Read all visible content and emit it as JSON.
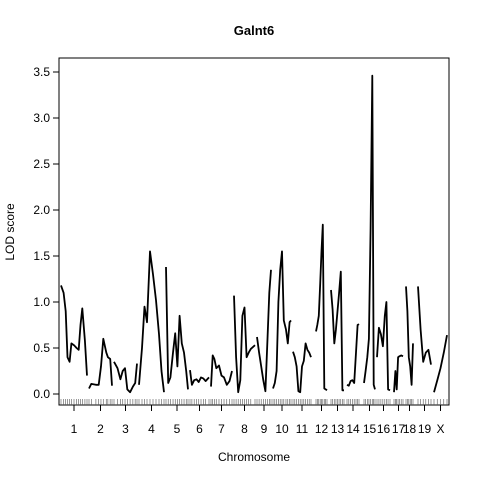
{
  "chart_data": {
    "type": "line",
    "title": "Galnt6",
    "xlabel": "Chromosome",
    "ylabel": "LOD score",
    "ylim": [
      0,
      3.5
    ],
    "y_ticks": [
      "0.0",
      "0.5",
      "1.0",
      "1.5",
      "2.0",
      "2.5",
      "3.0",
      "3.5"
    ],
    "grid": false,
    "chromosomes": [
      {
        "name": "1",
        "points": [
          [
            0,
            1.18
          ],
          [
            0.1,
            1.1
          ],
          [
            0.18,
            0.9
          ],
          [
            0.25,
            0.4
          ],
          [
            0.33,
            0.35
          ],
          [
            0.4,
            0.55
          ],
          [
            0.5,
            0.53
          ],
          [
            0.6,
            0.5
          ],
          [
            0.68,
            0.48
          ],
          [
            0.75,
            0.75
          ],
          [
            0.82,
            0.93
          ],
          [
            0.92,
            0.58
          ],
          [
            1,
            0.2
          ]
        ]
      },
      {
        "name": "2",
        "points": [
          [
            0,
            0.06
          ],
          [
            0.1,
            0.11
          ],
          [
            0.3,
            0.1
          ],
          [
            0.42,
            0.1
          ],
          [
            0.52,
            0.3
          ],
          [
            0.62,
            0.6
          ],
          [
            0.75,
            0.45
          ],
          [
            0.82,
            0.4
          ],
          [
            0.92,
            0.38
          ],
          [
            1,
            0.09
          ]
        ]
      },
      {
        "name": "3",
        "points": [
          [
            0,
            0.35
          ],
          [
            0.15,
            0.28
          ],
          [
            0.28,
            0.16
          ],
          [
            0.38,
            0.25
          ],
          [
            0.48,
            0.28
          ],
          [
            0.58,
            0.05
          ],
          [
            0.7,
            0.02
          ],
          [
            0.82,
            0.08
          ],
          [
            0.92,
            0.12
          ],
          [
            1,
            0.33
          ]
        ]
      },
      {
        "name": "4",
        "points": [
          [
            0,
            0.1
          ],
          [
            0.12,
            0.5
          ],
          [
            0.22,
            0.95
          ],
          [
            0.32,
            0.78
          ],
          [
            0.44,
            1.55
          ],
          [
            0.56,
            1.3
          ],
          [
            0.68,
            1.02
          ],
          [
            0.8,
            0.65
          ],
          [
            0.9,
            0.25
          ],
          [
            1,
            0.02
          ]
        ]
      },
      {
        "name": "5",
        "points": [
          [
            0,
            1.38
          ],
          [
            0.1,
            0.12
          ],
          [
            0.2,
            0.18
          ],
          [
            0.32,
            0.45
          ],
          [
            0.42,
            0.66
          ],
          [
            0.52,
            0.3
          ],
          [
            0.62,
            0.85
          ],
          [
            0.72,
            0.55
          ],
          [
            0.82,
            0.45
          ],
          [
            0.92,
            0.25
          ],
          [
            1,
            0.05
          ]
        ]
      },
      {
        "name": "6",
        "points": [
          [
            0,
            0.26
          ],
          [
            0.1,
            0.1
          ],
          [
            0.22,
            0.15
          ],
          [
            0.34,
            0.16
          ],
          [
            0.46,
            0.13
          ],
          [
            0.58,
            0.18
          ],
          [
            0.7,
            0.17
          ],
          [
            0.82,
            0.14
          ],
          [
            1,
            0.18
          ]
        ]
      },
      {
        "name": "7",
        "points": [
          [
            0,
            0.08
          ],
          [
            0.08,
            0.42
          ],
          [
            0.16,
            0.38
          ],
          [
            0.25,
            0.28
          ],
          [
            0.38,
            0.31
          ],
          [
            0.5,
            0.2
          ],
          [
            0.62,
            0.18
          ],
          [
            0.75,
            0.1
          ],
          [
            0.88,
            0.14
          ],
          [
            1,
            0.25
          ]
        ]
      },
      {
        "name": "8",
        "points": [
          [
            0,
            1.07
          ],
          [
            0.1,
            0.4
          ],
          [
            0.2,
            0.02
          ],
          [
            0.3,
            0.15
          ],
          [
            0.4,
            0.85
          ],
          [
            0.5,
            0.94
          ],
          [
            0.6,
            0.4
          ],
          [
            0.7,
            0.45
          ],
          [
            0.8,
            0.49
          ],
          [
            1,
            0.53
          ]
        ]
      },
      {
        "name": "9",
        "points": [
          [
            0,
            0.62
          ],
          [
            0.15,
            0.45
          ],
          [
            0.3,
            0.3
          ],
          [
            0.45,
            0.15
          ],
          [
            0.6,
            0.03
          ],
          [
            0.75,
            0.6
          ],
          [
            0.88,
            1.1
          ],
          [
            1,
            1.35
          ]
        ]
      },
      {
        "name": "10",
        "points": [
          [
            0,
            0.06
          ],
          [
            0.1,
            0.12
          ],
          [
            0.2,
            0.25
          ],
          [
            0.3,
            1.0
          ],
          [
            0.4,
            1.35
          ],
          [
            0.5,
            1.55
          ],
          [
            0.6,
            0.8
          ],
          [
            0.72,
            0.7
          ],
          [
            0.82,
            0.55
          ],
          [
            0.92,
            0.78
          ],
          [
            1,
            0.8
          ]
        ]
      },
      {
        "name": "11",
        "points": [
          [
            0,
            0.46
          ],
          [
            0.1,
            0.4
          ],
          [
            0.2,
            0.3
          ],
          [
            0.3,
            0.03
          ],
          [
            0.4,
            0.02
          ],
          [
            0.5,
            0.3
          ],
          [
            0.6,
            0.36
          ],
          [
            0.7,
            0.55
          ],
          [
            0.8,
            0.48
          ],
          [
            0.9,
            0.45
          ],
          [
            1,
            0.4
          ]
        ]
      },
      {
        "name": "12",
        "points": [
          [
            0,
            0.68
          ],
          [
            0.12,
            0.75
          ],
          [
            0.25,
            0.85
          ],
          [
            0.38,
            1.2
          ],
          [
            0.5,
            1.55
          ],
          [
            0.62,
            1.84
          ],
          [
            0.75,
            0.06
          ],
          [
            0.88,
            0.05
          ],
          [
            1,
            0.04
          ]
        ]
      },
      {
        "name": "13",
        "points": [
          [
            0,
            1.13
          ],
          [
            0.12,
            0.92
          ],
          [
            0.25,
            0.55
          ],
          [
            0.38,
            0.7
          ],
          [
            0.5,
            0.9
          ],
          [
            0.62,
            1.1
          ],
          [
            0.75,
            1.33
          ],
          [
            0.88,
            0.04
          ],
          [
            1,
            0.04
          ]
        ]
      },
      {
        "name": "14",
        "points": [
          [
            0,
            0.1
          ],
          [
            0.15,
            0.09
          ],
          [
            0.3,
            0.14
          ],
          [
            0.45,
            0.15
          ],
          [
            0.6,
            0.12
          ],
          [
            0.75,
            0.45
          ],
          [
            0.88,
            0.75
          ],
          [
            1,
            0.76
          ]
        ]
      },
      {
        "name": "15",
        "points": [
          [
            0,
            0.12
          ],
          [
            0.15,
            0.25
          ],
          [
            0.3,
            0.4
          ],
          [
            0.45,
            0.6
          ],
          [
            0.6,
            1.8
          ],
          [
            0.75,
            3.46
          ],
          [
            0.88,
            0.1
          ],
          [
            1,
            0.05
          ]
        ]
      },
      {
        "name": "16",
        "points": [
          [
            0,
            0.4
          ],
          [
            0.15,
            0.72
          ],
          [
            0.3,
            0.65
          ],
          [
            0.45,
            0.52
          ],
          [
            0.6,
            0.85
          ],
          [
            0.72,
            1.0
          ],
          [
            0.85,
            0.05
          ],
          [
            1,
            0.04
          ]
        ]
      },
      {
        "name": "17",
        "points": [
          [
            0,
            0.02
          ],
          [
            0.15,
            0.25
          ],
          [
            0.3,
            0.05
          ],
          [
            0.45,
            0.4
          ],
          [
            0.6,
            0.41
          ],
          [
            0.8,
            0.42
          ],
          [
            1,
            0.41
          ]
        ]
      },
      {
        "name": "18",
        "points": [
          [
            0,
            1.17
          ],
          [
            0.2,
            0.9
          ],
          [
            0.4,
            0.4
          ],
          [
            0.6,
            0.3
          ],
          [
            0.8,
            0.1
          ],
          [
            1,
            0.55
          ]
        ]
      },
      {
        "name": "19",
        "points": [
          [
            0,
            1.17
          ],
          [
            0.2,
            0.7
          ],
          [
            0.4,
            0.35
          ],
          [
            0.6,
            0.45
          ],
          [
            0.8,
            0.48
          ],
          [
            1,
            0.32
          ]
        ]
      },
      {
        "name": "X",
        "points": [
          [
            0,
            0.02
          ],
          [
            0.25,
            0.15
          ],
          [
            0.5,
            0.28
          ],
          [
            0.75,
            0.45
          ],
          [
            1,
            0.64
          ]
        ]
      }
    ]
  }
}
